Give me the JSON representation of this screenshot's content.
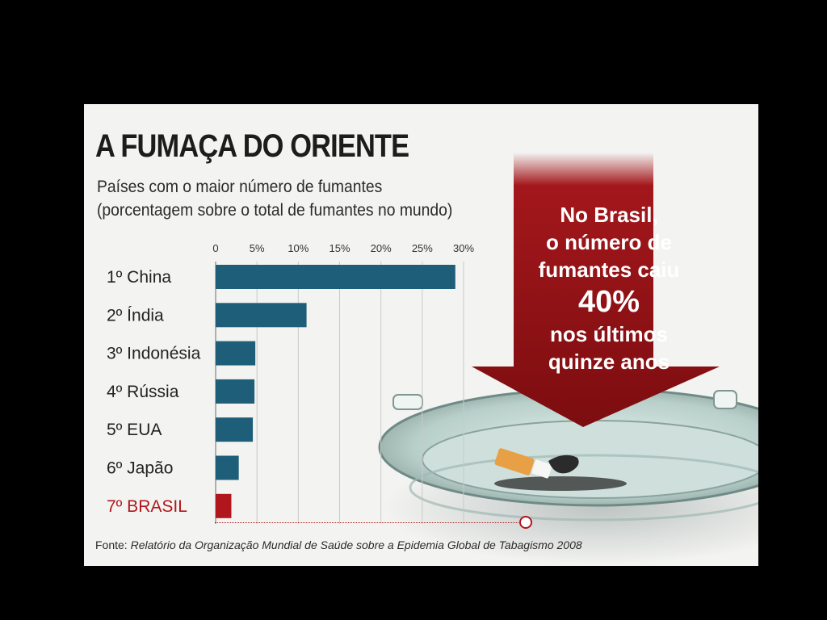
{
  "header": {
    "title": "A FUMAÇA DO ORIENTE",
    "subtitle_line1": "Países com o maior número de fumantes",
    "subtitle_line2": "(porcentagem sobre o total de fumantes no mundo)"
  },
  "callout": {
    "line1": "No Brasil,",
    "line2": "o número de",
    "line3": "fumantes caiu",
    "line4": "40%",
    "line5": "nos últimos",
    "line6": "quinze anos"
  },
  "source": {
    "prefix": "Fonte: ",
    "text": "Relatório da Organização Mundial de Saúde sobre a Epidemia Global de Tabagismo 2008"
  },
  "colors": {
    "bar": "#1f5e78",
    "highlight": "#b0161c",
    "callout": "#a3171b"
  },
  "chart_data": {
    "type": "bar",
    "orientation": "horizontal",
    "categories": [
      "1º  China",
      "2º  Índia",
      "3º  Indonésia",
      "4º  Rússia",
      "5º  EUA",
      "6º  Japão",
      "7º  BRASIL"
    ],
    "values": [
      29,
      11,
      4.8,
      4.7,
      4.5,
      2.8,
      1.9
    ],
    "highlight_index": 6,
    "xlim": [
      0,
      30
    ],
    "xticks": [
      0,
      5,
      10,
      15,
      20,
      25,
      30
    ],
    "xtick_labels": [
      "0",
      "5%",
      "10%",
      "15%",
      "20%",
      "25%",
      "30%"
    ],
    "grid": true
  }
}
